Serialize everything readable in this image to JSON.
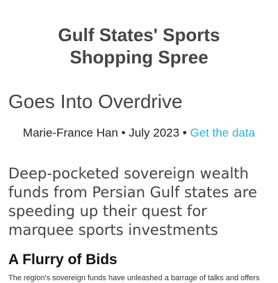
{
  "header": {
    "title": "Gulf States' Sports Shopping Spree",
    "subtitle": "Goes Into Overdrive"
  },
  "byline": {
    "text": "Marie-France Han • July 2023 •",
    "link": "Get the data"
  },
  "dek": "Deep-pocketed sovereign wealth funds from Persian Gulf states are speeding up their quest for marquee sports investments",
  "section": {
    "heading": "A Flurry of Bids",
    "body": "The region's sovereign funds have unleashed a barrage of talks and offers"
  }
}
